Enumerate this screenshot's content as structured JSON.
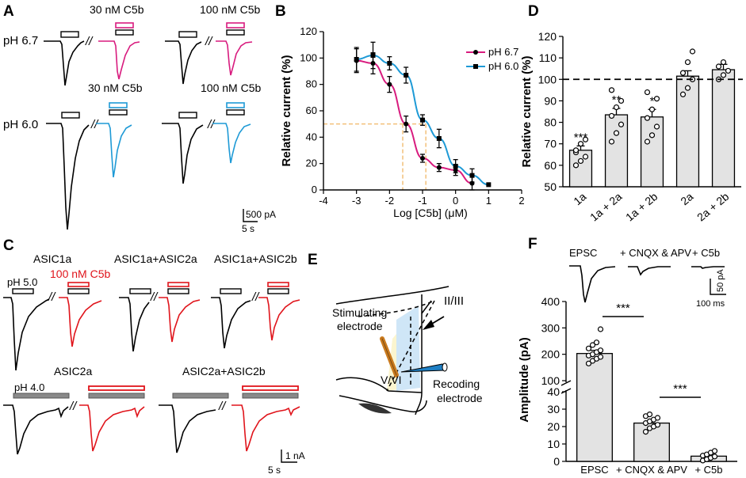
{
  "colors": {
    "black": "#000000",
    "magenta": "#d81b7e",
    "blue": "#1e9ad6",
    "red": "#e0141b",
    "gray": "#8a8a8a",
    "orange_dash": "#f2c07a",
    "bar_fill": "#e3e3e3",
    "region_yellow": "#fbf5cf",
    "region_blue": "#cfe6f7",
    "electrode_orange": "#c97a1e",
    "electrode_blue": "#1e7fc4"
  },
  "panelA": {
    "label": "A",
    "row1": {
      "ph": "pH 6.7",
      "conc1": "30 nM C5b",
      "conc2": "100 nM C5b"
    },
    "row2": {
      "ph": "pH 6.0",
      "conc1": "30 nM C5b",
      "conc2": "100 nM C5b"
    },
    "break_mark": "//",
    "scale_y": "500 pA",
    "scale_x": "5 s"
  },
  "panelB": {
    "label": "B",
    "chart_data": {
      "type": "line",
      "xlabel": "Log [C5b] (μM)",
      "ylabel": "Relative current (%)",
      "xlim": [
        -4,
        2
      ],
      "ylim": [
        0,
        120
      ],
      "xticks": [
        "-4",
        "-3",
        "-2",
        "-1",
        "0",
        "1",
        "2"
      ],
      "yticks": [
        "0",
        "20",
        "40",
        "60",
        "80",
        "100",
        "120"
      ],
      "series": [
        {
          "name": "pH 6.7",
          "color": "#d81b7e",
          "x": [
            -3,
            -2.5,
            -2,
            -1.5,
            -1,
            -0.5,
            0,
            0.5
          ],
          "y": [
            98,
            96,
            80,
            50,
            24,
            17,
            15,
            5
          ],
          "err": [
            9,
            8,
            6,
            6,
            3,
            3,
            4,
            5
          ]
        },
        {
          "name": "pH 6.0",
          "color": "#1e9ad6",
          "x": [
            -3,
            -2.5,
            -2,
            -1.5,
            -1,
            -0.5,
            0,
            0.5,
            1
          ],
          "y": [
            99,
            102,
            96,
            87,
            53,
            39,
            18,
            11,
            4
          ],
          "err": [
            9,
            10,
            5,
            6,
            4,
            7,
            5,
            5,
            0
          ]
        }
      ],
      "ic50_guides": [
        -1.6,
        -0.9
      ],
      "ic50_level": 50
    }
  },
  "panelC": {
    "label": "C",
    "row1_titles": [
      "ASIC1a",
      "ASIC1a+ASIC2a",
      "ASIC1a+ASIC2b"
    ],
    "row1_ph": "pH 5.0",
    "row1_drug": "100 nM C5b",
    "row2_titles": [
      "ASIC2a",
      "ASIC2a+ASIC2b"
    ],
    "row2_ph": "pH 4.0",
    "break_mark": "//",
    "scale_y": "1 nA",
    "scale_x": "5 s"
  },
  "panelD": {
    "label": "D",
    "chart_data": {
      "type": "bar",
      "ylabel": "Relative current (%)",
      "ylim": [
        50,
        120
      ],
      "yticks": [
        "50",
        "60",
        "70",
        "80",
        "90",
        "100",
        "110",
        "120"
      ],
      "categories": [
        "1a",
        "1a + 2a",
        "1a + 2b",
        "2a",
        "2a + 2b"
      ],
      "values": [
        67,
        83.5,
        82.5,
        101.5,
        104.5
      ],
      "errors": [
        2,
        3,
        3.5,
        2.5,
        2.5
      ],
      "significance": [
        "***",
        "**",
        "*",
        "",
        ""
      ],
      "reference_line": 100,
      "points": [
        [
          60,
          62,
          64,
          66,
          70,
          72,
          67
        ],
        [
          71,
          75,
          79,
          83,
          87,
          90,
          95
        ],
        [
          71,
          74,
          78,
          82,
          86,
          91,
          94
        ],
        [
          93,
          96,
          100,
          103,
          108,
          113
        ],
        [
          100,
          102,
          104,
          106,
          108
        ]
      ]
    }
  },
  "panelE": {
    "label": "E",
    "layer_top": "II/III",
    "layer_bottom": "V/VI",
    "stim_line1": "Stimulating",
    "stim_line2": "electrode",
    "rec_line1": "Recoding",
    "rec_line2": "electrode"
  },
  "panelF": {
    "label": "F",
    "trace_labels": [
      "EPSC",
      "+ CNQX & APV",
      "+ C5b"
    ],
    "scale_y": "50 pA",
    "scale_x": "100 ms",
    "chart_data": {
      "type": "bar",
      "ylabel": "Amplitude (pA)",
      "categories": [
        "EPSC",
        "+ CNQX & APV",
        "+ C5b"
      ],
      "values": [
        203,
        22,
        3
      ],
      "errors": [
        12,
        2,
        1
      ],
      "yticks_upper": [
        "100",
        "200",
        "300",
        "400"
      ],
      "yticks_lower": [
        "0",
        "10",
        "20",
        "30",
        "40"
      ],
      "axis_break": [
        40,
        100
      ],
      "significance": [
        {
          "pair": [
            0,
            1
          ],
          "label": "***"
        },
        {
          "pair": [
            1,
            2
          ],
          "label": "***"
        }
      ],
      "points": [
        [
          165,
          175,
          183,
          190,
          195,
          200,
          208,
          215,
          222,
          235,
          245,
          295
        ],
        [
          17,
          19,
          20,
          21,
          22,
          23,
          24,
          25,
          26,
          27
        ],
        [
          0.5,
          1.2,
          2,
          2.8,
          3.3,
          4,
          5,
          6
        ]
      ]
    }
  }
}
